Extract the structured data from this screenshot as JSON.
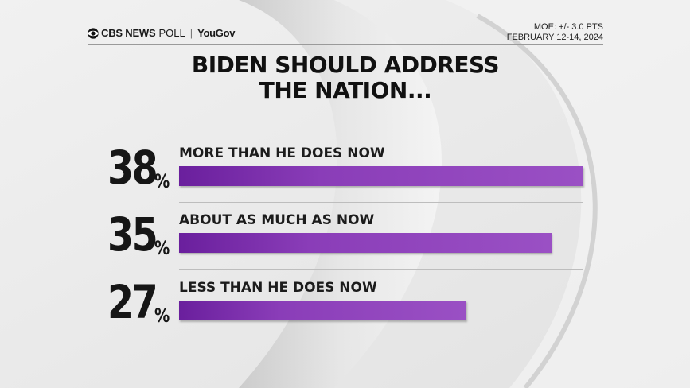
{
  "header": {
    "brand_cbs": "CBS NEWS",
    "brand_poll": "POLL",
    "brand_sep": "|",
    "brand_partner": "YouGov",
    "moe": "MOE: +/- 3.0 PTS",
    "dates": "FEBRUARY 12-14, 2024"
  },
  "colors": {
    "bar_start": "#6a1f9d",
    "bar_end": "#9a50c4",
    "text": "#161616"
  },
  "chart_data": {
    "type": "bar",
    "title": "BIDEN SHOULD ADDRESS THE NATION...",
    "title_lines": [
      "BIDEN SHOULD ADDRESS",
      "THE NATION..."
    ],
    "categories": [
      "MORE THAN HE DOES NOW",
      "ABOUT AS MUCH AS NOW",
      "LESS THAN HE DOES NOW"
    ],
    "values": [
      38,
      35,
      27
    ],
    "value_labels": [
      "38",
      "35",
      "27"
    ],
    "unit": "%",
    "orientation": "horizontal",
    "xlim": [
      0,
      38
    ]
  }
}
